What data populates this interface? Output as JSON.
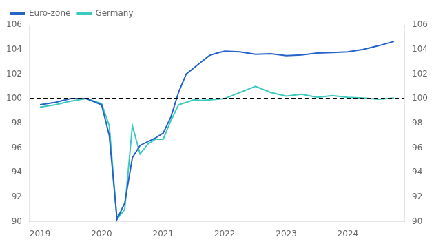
{
  "chart_data": {
    "type": "line",
    "x": [
      2019.0,
      2019.25,
      2019.5,
      2019.75,
      2020.0,
      2020.125,
      2020.25,
      2020.375,
      2020.5,
      2020.625,
      2020.75,
      2020.875,
      2021.0,
      2021.125,
      2021.25,
      2021.375,
      2021.5,
      2021.625,
      2021.75,
      2021.875,
      2022.0,
      2022.25,
      2022.5,
      2022.75,
      2023.0,
      2023.25,
      2023.5,
      2023.75,
      2024.0,
      2024.25,
      2024.5,
      2024.75
    ],
    "series": [
      {
        "name": "Euro-zone",
        "color": "#2563c7",
        "values": [
          99.5,
          99.7,
          100.0,
          100.0,
          99.5,
          97.0,
          90.2,
          91.5,
          95.2,
          96.2,
          96.5,
          96.8,
          97.2,
          98.5,
          100.5,
          102.0,
          102.5,
          103.0,
          103.5,
          103.7,
          103.85,
          103.8,
          103.6,
          103.65,
          103.5,
          103.55,
          103.7,
          103.75,
          103.8,
          104.0,
          104.3,
          104.65
        ]
      },
      {
        "name": "Germany",
        "color": "#3ec9be",
        "values": [
          99.3,
          99.5,
          99.8,
          100.0,
          99.6,
          97.8,
          90.2,
          91.0,
          97.8,
          95.5,
          96.3,
          96.7,
          96.7,
          98.2,
          99.5,
          99.7,
          99.9,
          99.85,
          99.9,
          99.95,
          100.0,
          100.5,
          101.0,
          100.5,
          100.2,
          100.35,
          100.1,
          100.25,
          100.1,
          100.05,
          99.95,
          100.05
        ]
      }
    ],
    "reference_line": {
      "value": 100,
      "color": "#000000",
      "line_style": "dashed"
    },
    "xlim": [
      2018.83,
      2024.92
    ],
    "xticks": [
      2019,
      2020,
      2021,
      2022,
      2023,
      2024
    ],
    "ylim": [
      90,
      106
    ],
    "yticks": [
      90,
      92,
      94,
      96,
      98,
      100,
      102,
      104,
      106
    ],
    "y2lim": [
      90,
      106
    ],
    "y2ticks": [
      90,
      92,
      94,
      96,
      98,
      100,
      102,
      104,
      106
    ],
    "grid": false,
    "legend": "upper left"
  }
}
